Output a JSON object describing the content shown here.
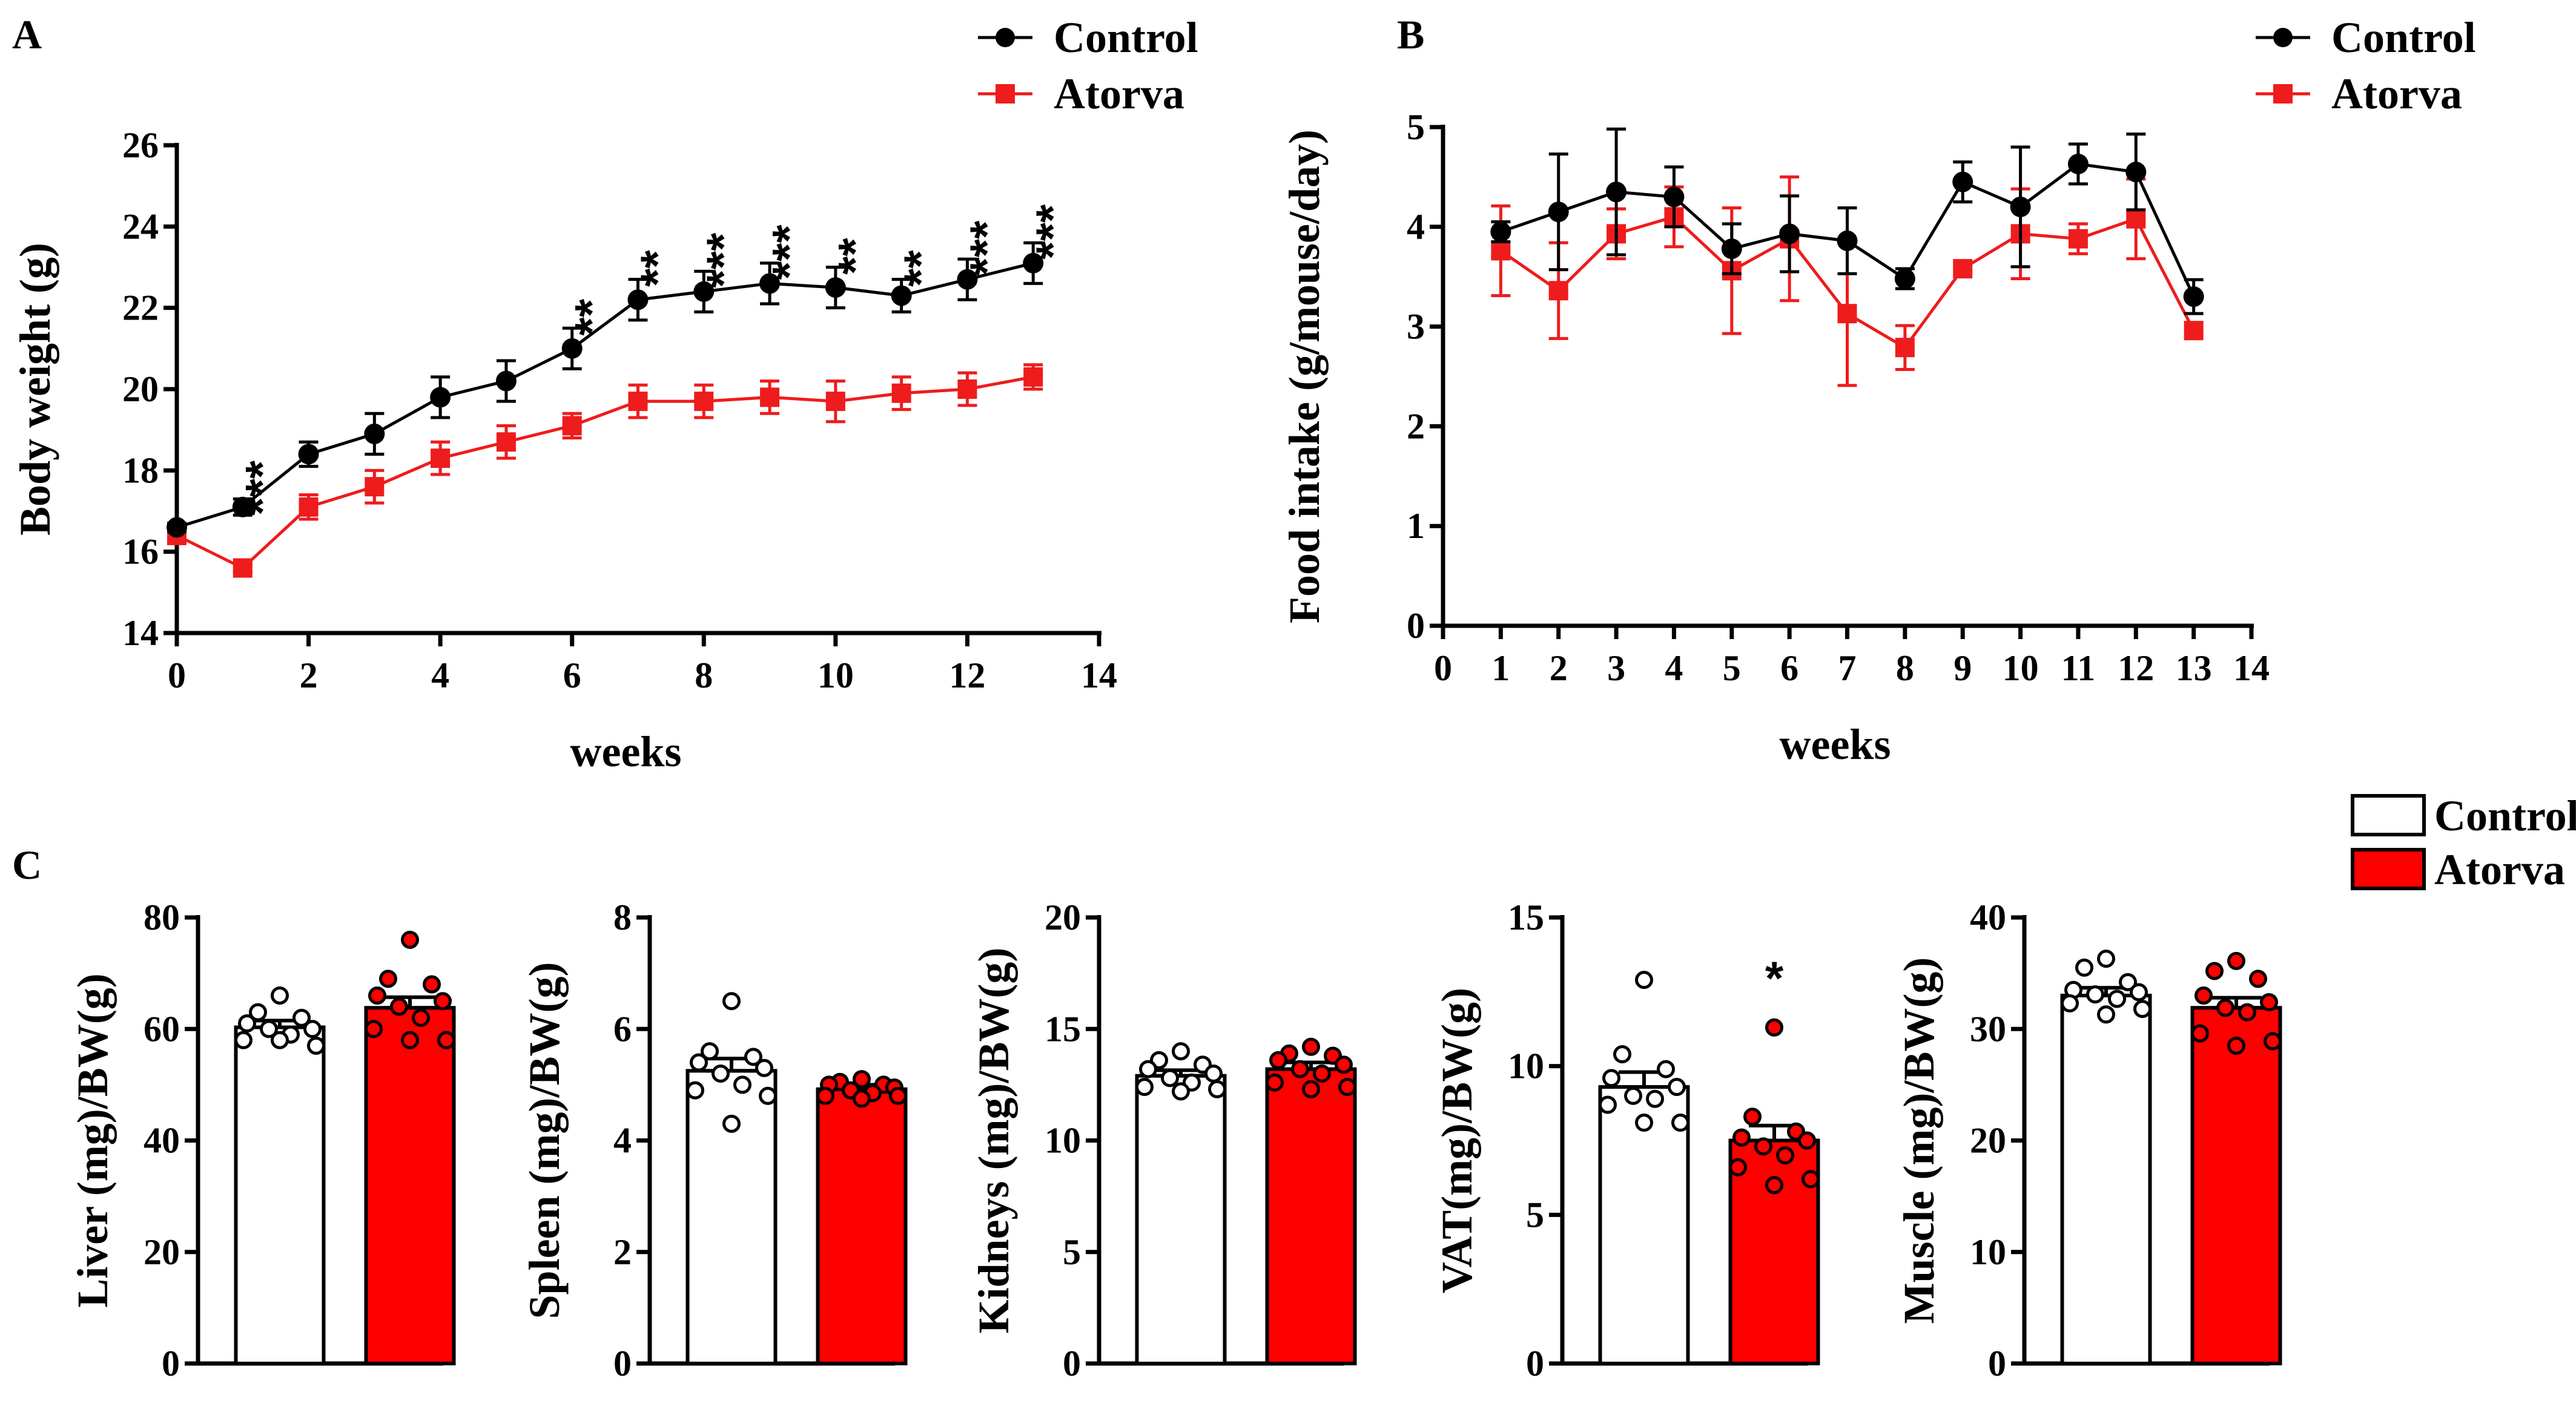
{
  "colors": {
    "control": "#000000",
    "atorva": "#ee1c1c",
    "bar_atorva": "#ff0000",
    "bar_control": "#ffffff"
  },
  "legend": {
    "control": "Control",
    "atorva": "Atorva"
  },
  "chart_data": [
    {
      "id": "A",
      "panel_label": "A",
      "type": "line",
      "xlabel": "weeks",
      "ylabel": "Body weight (g)",
      "xlim": [
        0,
        14
      ],
      "ylim": [
        14,
        26
      ],
      "xticks": [
        0,
        2,
        4,
        6,
        8,
        10,
        12,
        14
      ],
      "yticks": [
        14,
        16,
        18,
        20,
        22,
        24,
        26
      ],
      "series": [
        {
          "name": "Control",
          "x": [
            0,
            1,
            2,
            3,
            4,
            5,
            6,
            7,
            8,
            9,
            10,
            11,
            12,
            13
          ],
          "values": [
            16.6,
            17.1,
            18.4,
            18.9,
            19.8,
            20.2,
            21.0,
            22.2,
            22.4,
            22.6,
            22.5,
            22.3,
            22.7,
            23.1
          ],
          "errors": [
            0.1,
            0.2,
            0.3,
            0.5,
            0.5,
            0.5,
            0.5,
            0.5,
            0.5,
            0.5,
            0.5,
            0.4,
            0.5,
            0.5
          ]
        },
        {
          "name": "Atorva",
          "x": [
            0,
            1,
            2,
            3,
            4,
            5,
            6,
            7,
            8,
            9,
            10,
            11,
            12,
            13
          ],
          "values": [
            16.4,
            15.6,
            17.1,
            17.6,
            18.3,
            18.7,
            19.1,
            19.7,
            19.7,
            19.8,
            19.7,
            19.9,
            20.0,
            20.3
          ],
          "errors": [
            0.1,
            0.1,
            0.3,
            0.4,
            0.4,
            0.4,
            0.3,
            0.4,
            0.4,
            0.4,
            0.5,
            0.4,
            0.4,
            0.3
          ]
        }
      ],
      "annotations": [
        {
          "x": 1,
          "text": "***"
        },
        {
          "x": 6,
          "text": "**"
        },
        {
          "x": 7,
          "text": "**"
        },
        {
          "x": 8,
          "text": "***"
        },
        {
          "x": 9,
          "text": "***"
        },
        {
          "x": 10,
          "text": "**"
        },
        {
          "x": 11,
          "text": "**"
        },
        {
          "x": 12,
          "text": "***"
        },
        {
          "x": 13,
          "text": "***"
        }
      ]
    },
    {
      "id": "B",
      "panel_label": "B",
      "type": "line",
      "xlabel": "weeks",
      "ylabel": "Food intake (g/mouse/day)",
      "xlim": [
        0,
        14
      ],
      "ylim": [
        0,
        5
      ],
      "xticks": [
        0,
        1,
        2,
        3,
        4,
        5,
        6,
        7,
        8,
        9,
        10,
        11,
        12,
        13,
        14
      ],
      "yticks": [
        0,
        1,
        2,
        3,
        4,
        5
      ],
      "series": [
        {
          "name": "Control",
          "x": [
            1,
            2,
            3,
            4,
            5,
            6,
            7,
            8,
            9,
            10,
            11,
            12,
            13
          ],
          "values": [
            3.95,
            4.15,
            4.35,
            4.3,
            3.78,
            3.93,
            3.86,
            3.48,
            4.45,
            4.2,
            4.63,
            4.55,
            3.3
          ],
          "errors": [
            0.1,
            0.58,
            0.63,
            0.3,
            0.25,
            0.38,
            0.33,
            0.1,
            0.2,
            0.6,
            0.2,
            0.38,
            0.17
          ]
        },
        {
          "name": "Atorva",
          "x": [
            1,
            2,
            3,
            4,
            5,
            6,
            7,
            8,
            9,
            10,
            11,
            12,
            13
          ],
          "values": [
            3.76,
            3.36,
            3.93,
            4.1,
            3.56,
            3.88,
            3.13,
            2.79,
            3.58,
            3.93,
            3.88,
            4.08,
            2.96
          ],
          "errors": [
            0.45,
            0.48,
            0.25,
            0.3,
            0.63,
            0.62,
            0.72,
            0.22,
            0.0,
            0.45,
            0.15,
            0.4,
            0.0
          ]
        }
      ]
    },
    {
      "id": "C1",
      "panel_label": "C",
      "type": "bar",
      "ylabel": "Liver (mg)/BW(g)",
      "ylim": [
        0,
        80
      ],
      "yticks": [
        0,
        20,
        40,
        60,
        80
      ],
      "categories": [
        "Control",
        "Atorva"
      ],
      "values": [
        60.3,
        63.8
      ],
      "errors": [
        1.2,
        1.9
      ],
      "points": [
        [
          66,
          63,
          62,
          61,
          60,
          60,
          59,
          58,
          57,
          58
        ],
        [
          76,
          69,
          68,
          66,
          65,
          64,
          62,
          60,
          58,
          58
        ]
      ],
      "annotations": []
    },
    {
      "id": "C2",
      "type": "bar",
      "ylabel": "Spleen (mg)/BW(g)",
      "ylim": [
        0,
        8
      ],
      "yticks": [
        0,
        2,
        4,
        6,
        8
      ],
      "categories": [
        "Control",
        "Atorva"
      ],
      "values": [
        5.25,
        4.92
      ],
      "errors": [
        0.22,
        0.08
      ],
      "points": [
        [
          6.5,
          5.6,
          5.5,
          5.4,
          5.3,
          5.2,
          5.0,
          4.9,
          4.8,
          4.3
        ],
        [
          5.1,
          5.05,
          5.0,
          5.0,
          4.95,
          4.9,
          4.85,
          4.8,
          4.8,
          4.75
        ]
      ],
      "annotations": []
    },
    {
      "id": "C3",
      "type": "bar",
      "ylabel": "Kidneys (mg)/BW(g)",
      "ylim": [
        0,
        20
      ],
      "yticks": [
        0,
        5,
        10,
        15,
        20
      ],
      "categories": [
        "Control",
        "Atorva"
      ],
      "values": [
        12.9,
        13.2
      ],
      "errors": [
        0.25,
        0.3
      ],
      "points": [
        [
          14.0,
          13.6,
          13.4,
          13.2,
          13.0,
          12.8,
          12.6,
          12.4,
          12.3,
          12.2
        ],
        [
          14.2,
          13.9,
          13.8,
          13.6,
          13.4,
          13.2,
          13.0,
          12.6,
          12.4,
          12.3
        ]
      ],
      "annotations": []
    },
    {
      "id": "C4",
      "type": "bar",
      "ylabel": "VAT(mg)/BW(g)",
      "ylim": [
        0,
        15
      ],
      "yticks": [
        0,
        5,
        10,
        15
      ],
      "categories": [
        "Control",
        "Atorva"
      ],
      "values": [
        9.3,
        7.5
      ],
      "errors": [
        0.5,
        0.5
      ],
      "points": [
        [
          12.9,
          10.4,
          9.9,
          9.6,
          9.3,
          9.0,
          8.9,
          8.7,
          8.1,
          8.1
        ],
        [
          11.3,
          8.3,
          7.8,
          7.6,
          7.5,
          7.3,
          7.0,
          6.6,
          6.2,
          6.0
        ]
      ],
      "annotations": [
        {
          "category": "Atorva",
          "text": "*"
        }
      ]
    },
    {
      "id": "C5",
      "type": "bar",
      "ylabel": "Muscle (mg)/BW(g)",
      "ylim": [
        0,
        40
      ],
      "yticks": [
        0,
        10,
        20,
        30,
        40
      ],
      "categories": [
        "Control",
        "Atorva"
      ],
      "values": [
        33.0,
        31.9
      ],
      "errors": [
        0.7,
        0.9
      ],
      "points": [
        [
          36.3,
          35.5,
          34.2,
          33.5,
          33.3,
          33.1,
          32.7,
          32.3,
          31.8,
          31.3
        ],
        [
          36.1,
          35.2,
          34.5,
          33.0,
          32.4,
          31.9,
          31.5,
          29.6,
          28.9,
          28.5
        ]
      ],
      "annotations": []
    }
  ]
}
